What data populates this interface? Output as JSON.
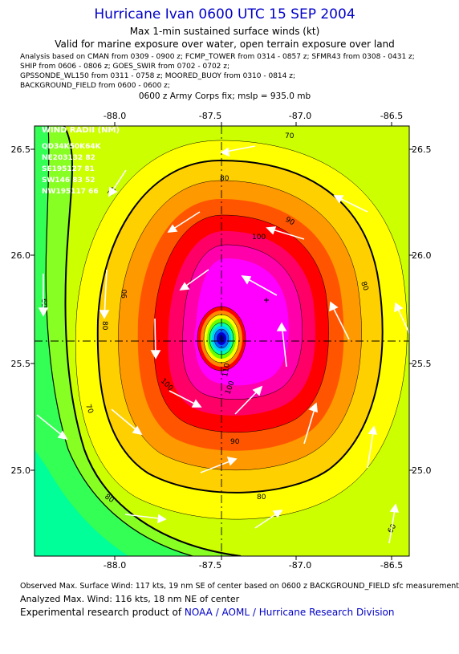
{
  "header": {
    "title": "Hurricane Ivan 0600 UTC 15 SEP 2004",
    "subtitle": "Max 1-min sustained surface winds (kt)",
    "valid_line": "Valid for marine exposure over water, open terrain exposure over land",
    "sources": [
      "Analysis based on  CMAN from 0309 - 0900 z;  FCMP_TOWER from 0314 - 0857 z;  SFMR43 from 0308 - 0431 z;",
      "SHIP from 0606 - 0806 z;  GOES_SWIR from 0702 - 0702 z;",
      "GPSSONDE_WL150 from 0311 - 0758 z;  MOORED_BUOY from 0310 - 0814 z;",
      "BACKGROUND_FIELD from 0600 - 0600 z;"
    ],
    "fix_line": "0600 z Army Corps fix; mslp = 935.0 mb"
  },
  "map": {
    "lon_ticks": [
      "-88.0",
      "-87.5",
      "-87.0",
      "-86.5"
    ],
    "lat_ticks": [
      "26.5",
      "26.0",
      "25.5",
      "25.0"
    ],
    "contour_labels": [
      "60",
      "60",
      "70",
      "70",
      "70",
      "80",
      "80",
      "80",
      "80",
      "80",
      "90",
      "90",
      "90",
      "100",
      "100",
      "100",
      "110"
    ],
    "wind_radii": {
      "title": "WIND RADII (NM)",
      "header": "QD34K50K64K",
      "rows": [
        "NE203132 82",
        "SE195127 81",
        "SW146 83 52",
        "NW195117 66"
      ]
    },
    "colors": {
      "fill_60": "#00ff88",
      "fill_70": "#ccff00",
      "fill_80": "#ffff00",
      "fill_90": "#ff9900",
      "fill_100": "#ff0000",
      "fill_110": "#ff00cc",
      "fill_max": "#ff00ff"
    }
  },
  "footer": {
    "observed": "Observed Max. Surface Wind: 117 kts, 19 nm SE of center based on 0600 z BACKGROUND_FIELD sfc measurement",
    "analyzed": "Analyzed Max. Wind: 116 kts, 18 nm NE of center",
    "credit_prefix": "Experimental research product of ",
    "credit_org": "NOAA / AOML / Hurricane Research Division"
  }
}
